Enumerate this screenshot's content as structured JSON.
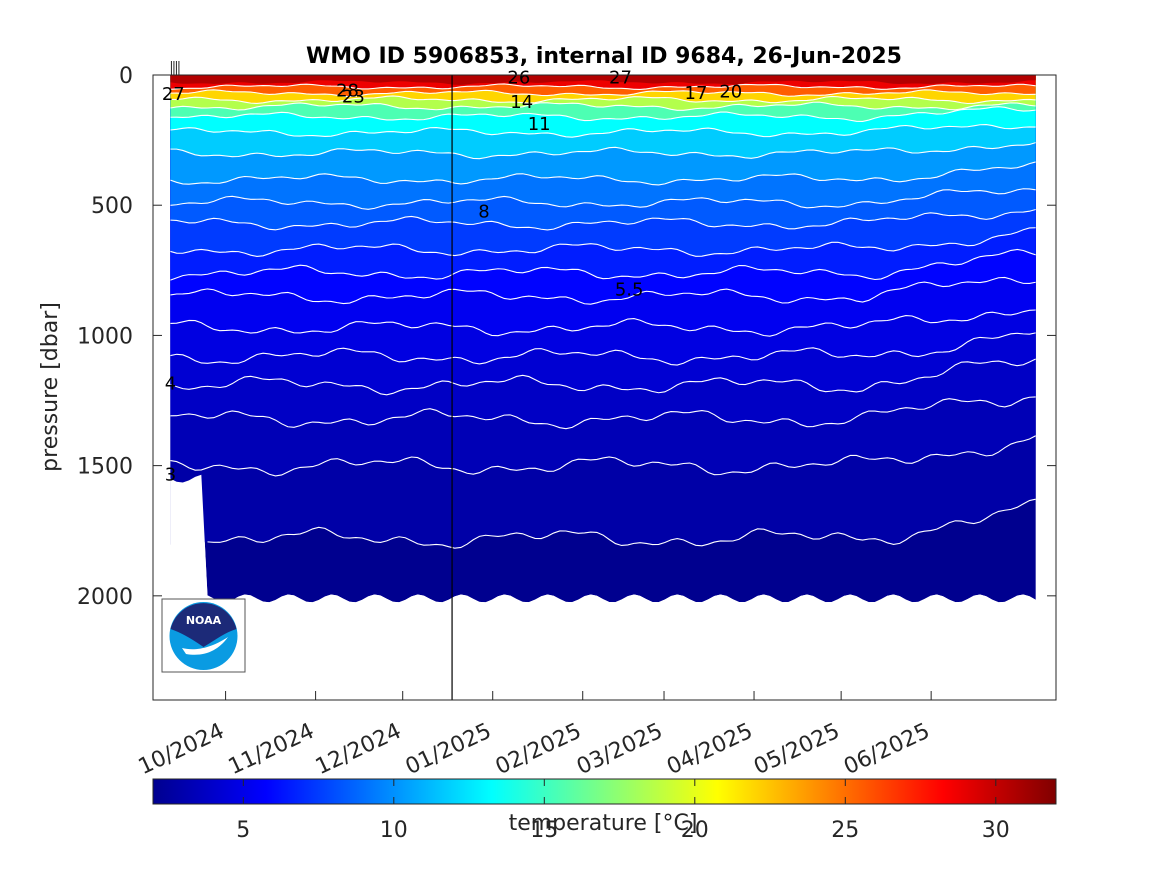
{
  "chart_data": {
    "type": "heatmap",
    "title": "WMO ID 5906853, internal ID 9684, 26-Jun-2025",
    "ylabel": "pressure [dbar]",
    "xlabel": "",
    "ylim": [
      0,
      2400
    ],
    "y_reversed": true,
    "y_ticks": [
      0,
      500,
      1000,
      1500,
      2000
    ],
    "y_tick_labels": [
      "0",
      "500",
      "1000",
      "1500",
      "2000"
    ],
    "x_range": [
      "2024-09-06",
      "2025-07-14"
    ],
    "x_tick_dates": [
      "2024-10-01",
      "2024-11-01",
      "2024-12-01",
      "2025-01-01",
      "2025-02-01",
      "2025-03-01",
      "2025-04-01",
      "2025-05-01",
      "2025-06-01"
    ],
    "x_tick_labels": [
      "10/2024",
      "11/2024",
      "12/2024",
      "01/2025",
      "02/2025",
      "03/2025",
      "04/2025",
      "05/2025",
      "06/2025"
    ],
    "data_start": "2024-09-12",
    "data_end": "2025-07-07",
    "marker_line_date": "2024-12-18",
    "early_profiles_max_depth_until": "2024-09-24",
    "early_profiles_max_depth": 1550,
    "max_depth": 2010,
    "colorbar": {
      "label": "temperature [°C]",
      "range": [
        2,
        32
      ],
      "ticks": [
        5,
        10,
        15,
        20,
        25,
        30
      ],
      "tick_labels": [
        "5",
        "10",
        "15",
        "20",
        "25",
        "30"
      ],
      "colormap": "jet"
    },
    "isotherms": [
      {
        "temp": 30.5,
        "base_depth": 28
      },
      {
        "temp": 27,
        "base_depth": 45
      },
      {
        "temp": 24,
        "base_depth": 70
      },
      {
        "temp": 20,
        "base_depth": 95
      },
      {
        "temp": 17,
        "base_depth": 120
      },
      {
        "temp": 14,
        "base_depth": 160
      },
      {
        "temp": 12.5,
        "base_depth": 220
      },
      {
        "temp": 11,
        "base_depth": 300
      },
      {
        "temp": 9.5,
        "base_depth": 400
      },
      {
        "temp": 8.8,
        "base_depth": 490
      },
      {
        "temp": 8,
        "base_depth": 570
      },
      {
        "temp": 7,
        "base_depth": 670
      },
      {
        "temp": 6.2,
        "base_depth": 760
      },
      {
        "temp": 5.5,
        "base_depth": 850
      },
      {
        "temp": 5,
        "base_depth": 970
      },
      {
        "temp": 4.5,
        "base_depth": 1080
      },
      {
        "temp": 4,
        "base_depth": 1190
      },
      {
        "temp": 3.6,
        "base_depth": 1320
      },
      {
        "temp": 3,
        "base_depth": 1500
      },
      {
        "temp": 2.6,
        "base_depth": 1780
      }
    ],
    "warm_surface_segments": [
      {
        "start": "2024-09-12",
        "end": "2025-05-05",
        "temp": 30.5
      },
      {
        "start": "2025-06-18",
        "end": "2025-07-07",
        "temp": 30.5
      }
    ],
    "contour_labels": [
      {
        "text": "27",
        "date": "2024-09-13",
        "depth": 70
      },
      {
        "text": "28",
        "date": "2024-11-12",
        "depth": 55
      },
      {
        "text": "23",
        "date": "2024-11-14",
        "depth": 78
      },
      {
        "text": "26",
        "date": "2025-01-10",
        "depth": 5
      },
      {
        "text": "14",
        "date": "2025-01-11",
        "depth": 100
      },
      {
        "text": "11",
        "date": "2025-01-17",
        "depth": 185
      },
      {
        "text": "27",
        "date": "2025-02-14",
        "depth": 5
      },
      {
        "text": "17",
        "date": "2025-03-12",
        "depth": 65
      },
      {
        "text": "20",
        "date": "2025-03-24",
        "depth": 60
      },
      {
        "text": "8",
        "date": "2024-12-29",
        "depth": 520
      },
      {
        "text": "5.5",
        "date": "2025-02-17",
        "depth": 820
      },
      {
        "text": "4",
        "date": "2024-09-12",
        "depth": 1180
      },
      {
        "text": "3",
        "date": "2024-09-12",
        "depth": 1530
      }
    ],
    "logo": {
      "text": "NOAA"
    }
  }
}
